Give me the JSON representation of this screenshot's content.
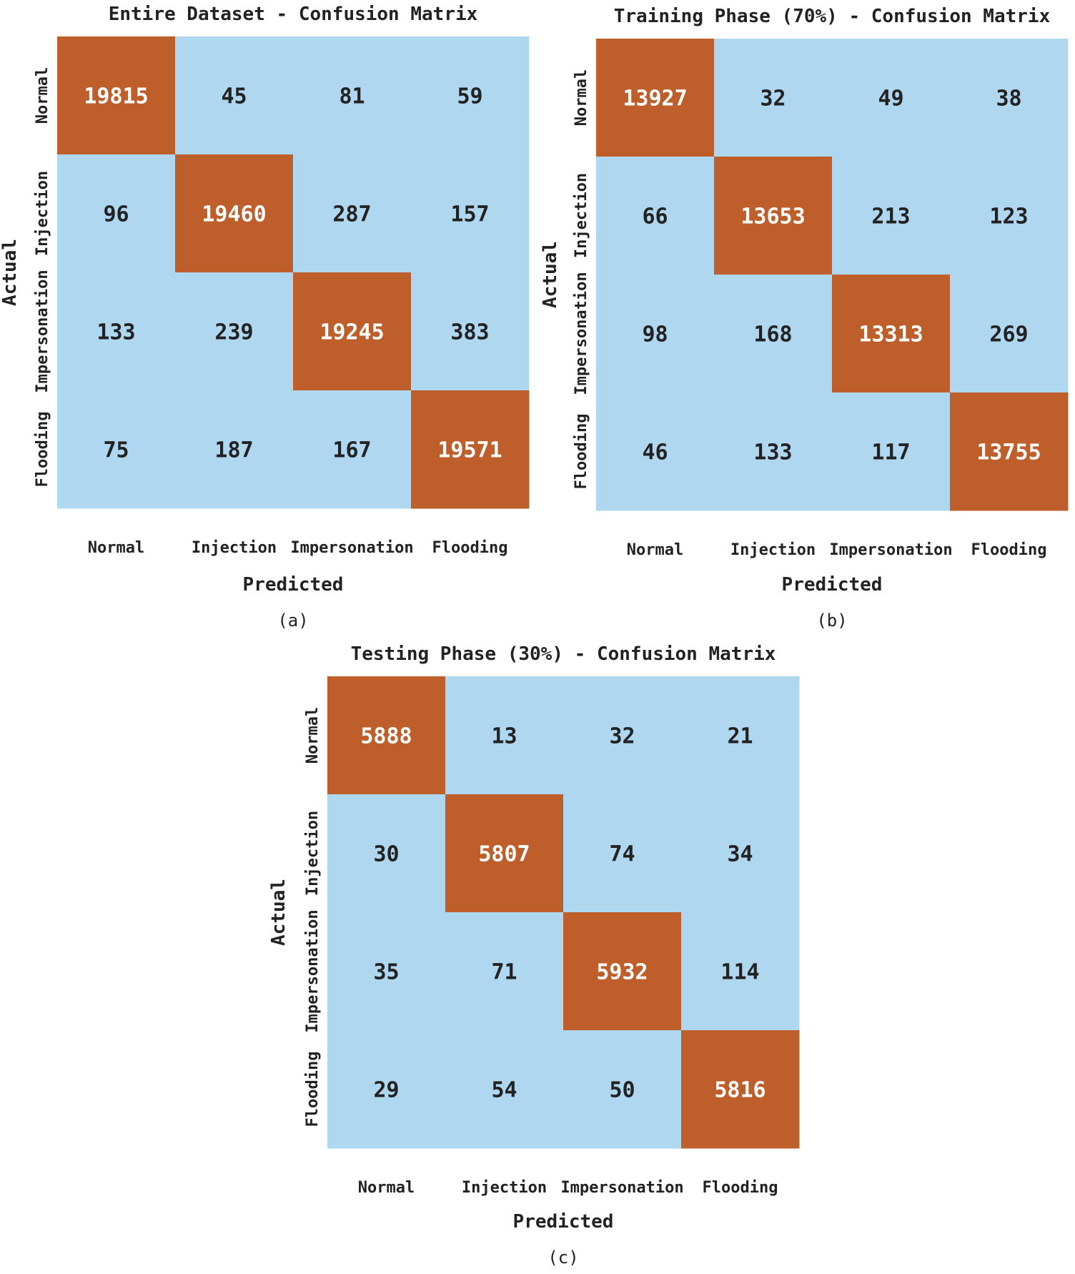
{
  "chart_data": [
    {
      "type": "heatmap",
      "title": "Entire Dataset - Confusion Matrix",
      "xlabel": "Predicted",
      "ylabel": "Actual",
      "x_categories": [
        "Normal",
        "Injection",
        "Impersonation",
        "Flooding"
      ],
      "y_categories": [
        "Normal",
        "Injection",
        "Impersonation",
        "Flooding"
      ],
      "values": [
        [
          19815,
          45,
          81,
          59
        ],
        [
          96,
          19460,
          287,
          157
        ],
        [
          133,
          239,
          19245,
          383
        ],
        [
          75,
          187,
          167,
          19571
        ]
      ],
      "caption": "(a)"
    },
    {
      "type": "heatmap",
      "title": "Training Phase (70%) - Confusion Matrix",
      "xlabel": "Predicted",
      "ylabel": "Actual",
      "x_categories": [
        "Normal",
        "Injection",
        "Impersonation",
        "Flooding"
      ],
      "y_categories": [
        "Normal",
        "Injection",
        "Impersonation",
        "Flooding"
      ],
      "values": [
        [
          13927,
          32,
          49,
          38
        ],
        [
          66,
          13653,
          213,
          123
        ],
        [
          98,
          168,
          13313,
          269
        ],
        [
          46,
          133,
          117,
          13755
        ]
      ],
      "caption": "(b)"
    },
    {
      "type": "heatmap",
      "title": "Testing Phase (30%) - Confusion Matrix",
      "xlabel": "Predicted",
      "ylabel": "Actual",
      "x_categories": [
        "Normal",
        "Injection",
        "Impersonation",
        "Flooding"
      ],
      "y_categories": [
        "Normal",
        "Injection",
        "Impersonation",
        "Flooding"
      ],
      "values": [
        [
          5888,
          13,
          32,
          21
        ],
        [
          30,
          5807,
          74,
          34
        ],
        [
          35,
          71,
          5932,
          114
        ],
        [
          29,
          54,
          50,
          5816
        ]
      ],
      "caption": "(c)"
    }
  ],
  "colors": {
    "diagonal_cell": "#be5e2a",
    "off_diagonal_cell": "#afd7f0",
    "diagonal_text": "#ffffff",
    "off_diagonal_text": "#222222"
  }
}
